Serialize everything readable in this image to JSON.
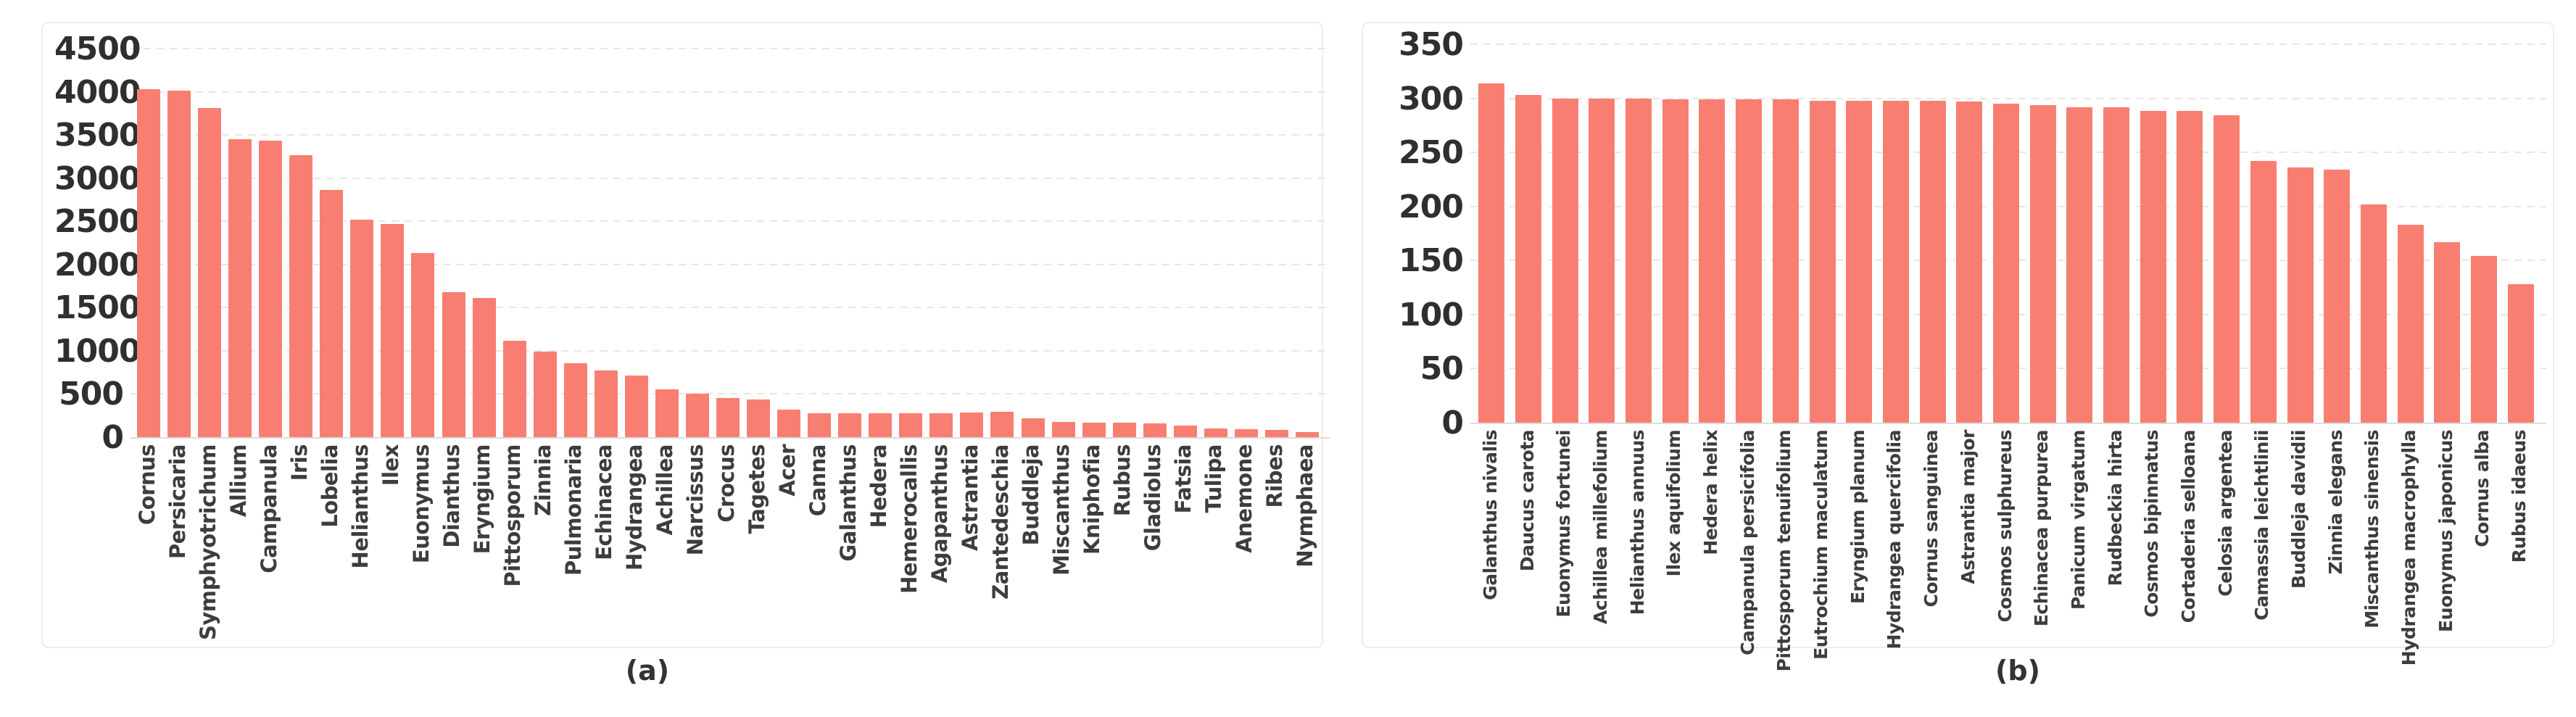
{
  "captions": {
    "a": "(a)",
    "b": "(b)"
  },
  "style": {
    "bar_color": "#F87E72",
    "gridline_color": "#e6e6e6",
    "axis_color": "#dcdcdc",
    "tick_text_color": "#2f2f2f",
    "label_text_color": "#3d3d3d",
    "panel_border_color": "#ededed"
  },
  "chart_data": [
    {
      "id": "a",
      "type": "bar",
      "title": "",
      "xlabel": "",
      "ylabel": "",
      "caption": "(a)",
      "legend": "none",
      "grid": true,
      "ylim": [
        0,
        4500
      ],
      "ytick_step": 500,
      "yticks": [
        "0",
        "500",
        "1000",
        "1500",
        "2000",
        "2500",
        "3000",
        "3500",
        "4000",
        "4500"
      ],
      "categories": [
        "Cornus",
        "Persicaria",
        "Symphyotrichum",
        "Allium",
        "Campanula",
        "Iris",
        "Lobelia",
        "Helianthus",
        "Ilex",
        "Euonymus",
        "Dianthus",
        "Eryngium",
        "Pittosporum",
        "Zinnia",
        "Pulmonaria",
        "Echinacea",
        "Hydrangea",
        "Achillea",
        "Narcissus",
        "Crocus",
        "Tagetes",
        "Acer",
        "Canna",
        "Galanthus",
        "Hedera",
        "Hemerocallis",
        "Agapanthus",
        "Astrantia",
        "Zantedeschia",
        "Buddleja",
        "Miscanthus",
        "Kniphofia",
        "Rubus",
        "Gladiolus",
        "Fatsia",
        "Tulipa",
        "Anemone",
        "Ribes",
        "Nymphaea"
      ],
      "values": [
        4030,
        4010,
        3810,
        3450,
        3430,
        3270,
        2860,
        2520,
        2470,
        2130,
        1680,
        1610,
        1120,
        990,
        860,
        770,
        710,
        550,
        505,
        450,
        440,
        320,
        280,
        278,
        278,
        276,
        278,
        285,
        292,
        215,
        180,
        172,
        165,
        158,
        137,
        100,
        95,
        80,
        55
      ]
    },
    {
      "id": "b",
      "type": "bar",
      "title": "",
      "xlabel": "",
      "ylabel": "",
      "caption": "(b)",
      "legend": "none",
      "grid": true,
      "ylim": [
        0,
        350
      ],
      "ytick_step": 50,
      "yticks": [
        "0",
        "50",
        "100",
        "150",
        "200",
        "250",
        "300",
        "350"
      ],
      "categories": [
        "Galanthus nivalis",
        "Daucus carota",
        "Euonymus fortunei",
        "Achillea millefolium",
        "Helianthus annuus",
        "Ilex aquifolium",
        "Hedera helix",
        "Campanula persicifolia",
        "Pittosporum tenuifolium",
        "Eutrochium maculatum",
        "Eryngium planum",
        "Hydrangea quercifolia",
        "Cornus sanguinea",
        "Astrantia major",
        "Cosmos sulphureus",
        "Echinacea purpurea",
        "Panicum virgatum",
        "Rudbeckia hirta",
        "Cosmos bipinnatus",
        "Cortaderia selloana",
        "Celosia argentea",
        "Camassia leichtlinii",
        "Buddleja davidii",
        "Zinnia elegans",
        "Miscanthus sinensis",
        "Hydrangea macrophylla",
        "Euonymus japonicus",
        "Cornus alba",
        "Rubus idaeus"
      ],
      "values": [
        314,
        303,
        300,
        300,
        300,
        299,
        299,
        299,
        299,
        298,
        298,
        298,
        298,
        297,
        295,
        294,
        292,
        292,
        288,
        288,
        284,
        242,
        236,
        234,
        202,
        183,
        167,
        154,
        128
      ]
    }
  ]
}
